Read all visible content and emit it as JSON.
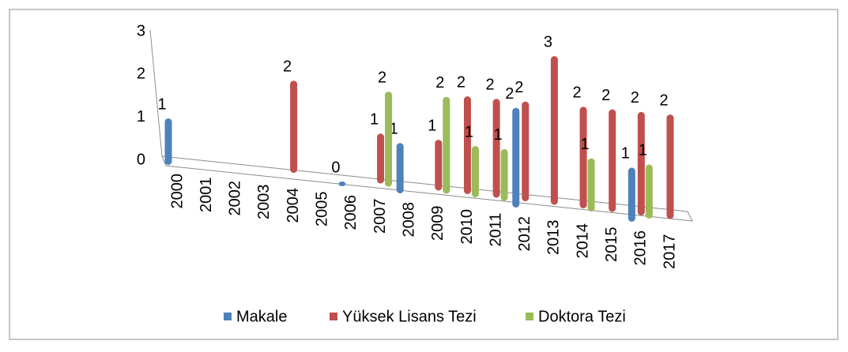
{
  "chart_data": {
    "type": "bar3d",
    "categories": [
      "2000",
      "2001",
      "2002",
      "2003",
      "2004",
      "2005",
      "2006",
      "2007",
      "2008",
      "2009",
      "2010",
      "2011",
      "2012",
      "2013",
      "2014",
      "2015",
      "2016",
      "2017"
    ],
    "series": [
      {
        "name": "Makale",
        "color": "#4f81bd",
        "values": [
          1,
          null,
          null,
          null,
          null,
          null,
          0,
          null,
          1,
          null,
          null,
          null,
          2,
          null,
          null,
          null,
          1,
          null
        ]
      },
      {
        "name": "Yüksek Lisans Tezi",
        "color": "#c0504d",
        "values": [
          null,
          null,
          null,
          null,
          2,
          null,
          null,
          1,
          null,
          1,
          2,
          2,
          2,
          3,
          2,
          2,
          2,
          2
        ]
      },
      {
        "name": "Doktora Tezi",
        "color": "#9bbb59",
        "values": [
          null,
          null,
          null,
          null,
          null,
          null,
          null,
          2,
          null,
          2,
          1,
          1,
          null,
          null,
          1,
          null,
          1,
          null
        ]
      }
    ],
    "ylim": [
      0,
      3
    ],
    "yticks": [
      0,
      1,
      2,
      3
    ],
    "legend": "bottom"
  }
}
